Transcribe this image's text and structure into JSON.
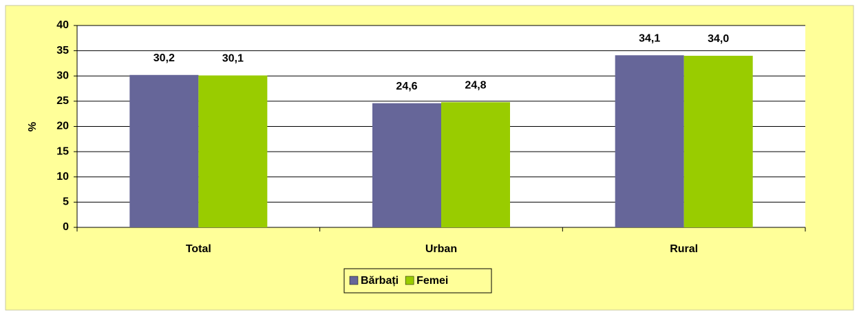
{
  "chart_data": {
    "type": "bar",
    "categories": [
      "Total",
      "Urban",
      "Rural"
    ],
    "series": [
      {
        "name": "Bărbați",
        "color": "#666699",
        "values": [
          30.2,
          24.6,
          34.1
        ],
        "value_labels": [
          "30,2",
          "24,6",
          "34,1"
        ]
      },
      {
        "name": "Femei",
        "color": "#99cc00",
        "values": [
          30.1,
          24.8,
          34.0
        ],
        "value_labels": [
          "30,1",
          "24,8",
          "34,0"
        ]
      }
    ],
    "ylabel": "%",
    "ylim": [
      0,
      40
    ],
    "yticks": [
      0,
      5,
      10,
      15,
      20,
      25,
      30,
      35,
      40
    ],
    "grid": true,
    "legend": "bottom"
  }
}
